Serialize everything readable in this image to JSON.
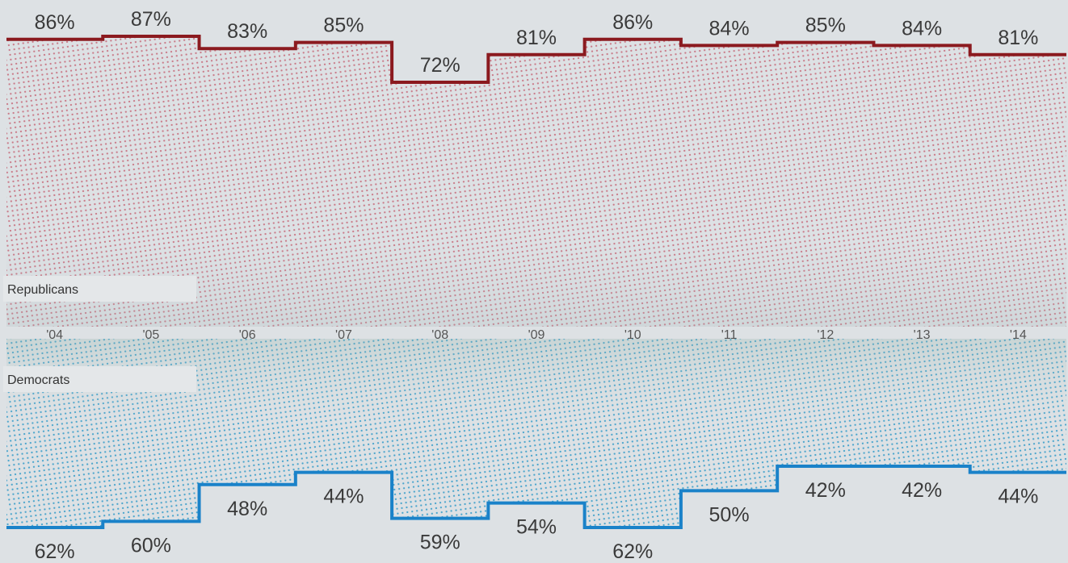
{
  "chart_data": {
    "type": "line",
    "step": true,
    "title": "",
    "xlabel": "",
    "ylabel": "",
    "categories": [
      "'04",
      "'05",
      "'06",
      "'07",
      "'08",
      "'09",
      "'10",
      "'11",
      "'12",
      "'13",
      "'14"
    ],
    "series": [
      {
        "name": "Republicans",
        "color": "#8b1a1f",
        "fill_color": "#c9707f",
        "values": [
          86,
          87,
          83,
          85,
          72,
          81,
          86,
          84,
          85,
          84,
          81
        ],
        "labels": [
          "86%",
          "87%",
          "83%",
          "85%",
          "72%",
          "81%",
          "86%",
          "84%",
          "85%",
          "84%",
          "81%"
        ]
      },
      {
        "name": "Democrats",
        "color": "#1a82c9",
        "fill_color": "#3fa0c8",
        "values": [
          62,
          60,
          48,
          44,
          59,
          54,
          62,
          50,
          42,
          42,
          44
        ],
        "labels": [
          "62%",
          "60%",
          "48%",
          "44%",
          "59%",
          "54%",
          "62%",
          "50%",
          "42%",
          "42%",
          "44%"
        ]
      }
    ],
    "legend": {
      "placement": "inline-left"
    },
    "grid": false
  },
  "colors": {
    "background": "#dde1e4"
  }
}
